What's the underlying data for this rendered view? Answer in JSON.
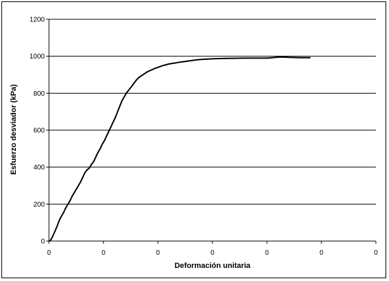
{
  "chart_data": {
    "type": "line",
    "title": "",
    "xlabel": "Deformación unitaria",
    "ylabel": "Esfuerzo desviador (kPa)",
    "x_tick_labels": [
      "0",
      "0",
      "0",
      "0",
      "0",
      "0",
      "0"
    ],
    "y_ticks": [
      0,
      200,
      400,
      600,
      800,
      1000,
      1200
    ],
    "ylim": [
      0,
      1200
    ],
    "grid": "horizontal",
    "legend": "none",
    "colors": {
      "line": "#000000",
      "grid": "#000000",
      "background": "#ffffff"
    },
    "series": [
      {
        "points": [
          [
            0.0,
            0
          ],
          [
            0.003,
            5
          ],
          [
            0.006,
            20
          ],
          [
            0.009,
            40
          ],
          [
            0.012,
            60
          ],
          [
            0.015,
            80
          ],
          [
            0.018,
            105
          ],
          [
            0.021,
            125
          ],
          [
            0.024,
            140
          ],
          [
            0.027,
            155
          ],
          [
            0.03,
            175
          ],
          [
            0.033,
            190
          ],
          [
            0.036,
            205
          ],
          [
            0.039,
            220
          ],
          [
            0.042,
            240
          ],
          [
            0.046,
            260
          ],
          [
            0.05,
            280
          ],
          [
            0.054,
            300
          ],
          [
            0.058,
            320
          ],
          [
            0.062,
            345
          ],
          [
            0.066,
            370
          ],
          [
            0.07,
            385
          ],
          [
            0.074,
            395
          ],
          [
            0.078,
            415
          ],
          [
            0.082,
            430
          ],
          [
            0.086,
            455
          ],
          [
            0.09,
            480
          ],
          [
            0.094,
            500
          ],
          [
            0.098,
            525
          ],
          [
            0.102,
            545
          ],
          [
            0.106,
            570
          ],
          [
            0.11,
            595
          ],
          [
            0.114,
            620
          ],
          [
            0.118,
            645
          ],
          [
            0.122,
            670
          ],
          [
            0.126,
            700
          ],
          [
            0.13,
            730
          ],
          [
            0.134,
            760
          ],
          [
            0.138,
            780
          ],
          [
            0.142,
            800
          ],
          [
            0.146,
            815
          ],
          [
            0.15,
            830
          ],
          [
            0.155,
            850
          ],
          [
            0.16,
            870
          ],
          [
            0.165,
            885
          ],
          [
            0.17,
            895
          ],
          [
            0.175,
            905
          ],
          [
            0.18,
            915
          ],
          [
            0.185,
            922
          ],
          [
            0.19,
            928
          ],
          [
            0.195,
            935
          ],
          [
            0.2,
            940
          ],
          [
            0.205,
            946
          ],
          [
            0.21,
            950
          ],
          [
            0.215,
            954
          ],
          [
            0.22,
            958
          ],
          [
            0.23,
            963
          ],
          [
            0.24,
            968
          ],
          [
            0.25,
            972
          ],
          [
            0.26,
            976
          ],
          [
            0.27,
            980
          ],
          [
            0.28,
            983
          ],
          [
            0.3,
            986
          ],
          [
            0.32,
            988
          ],
          [
            0.34,
            989
          ],
          [
            0.36,
            990
          ],
          [
            0.38,
            990
          ],
          [
            0.4,
            990
          ],
          [
            0.41,
            992
          ],
          [
            0.42,
            995
          ],
          [
            0.43,
            996
          ],
          [
            0.44,
            994
          ],
          [
            0.45,
            993
          ],
          [
            0.46,
            992
          ],
          [
            0.47,
            992
          ],
          [
            0.48,
            992
          ]
        ]
      }
    ]
  }
}
